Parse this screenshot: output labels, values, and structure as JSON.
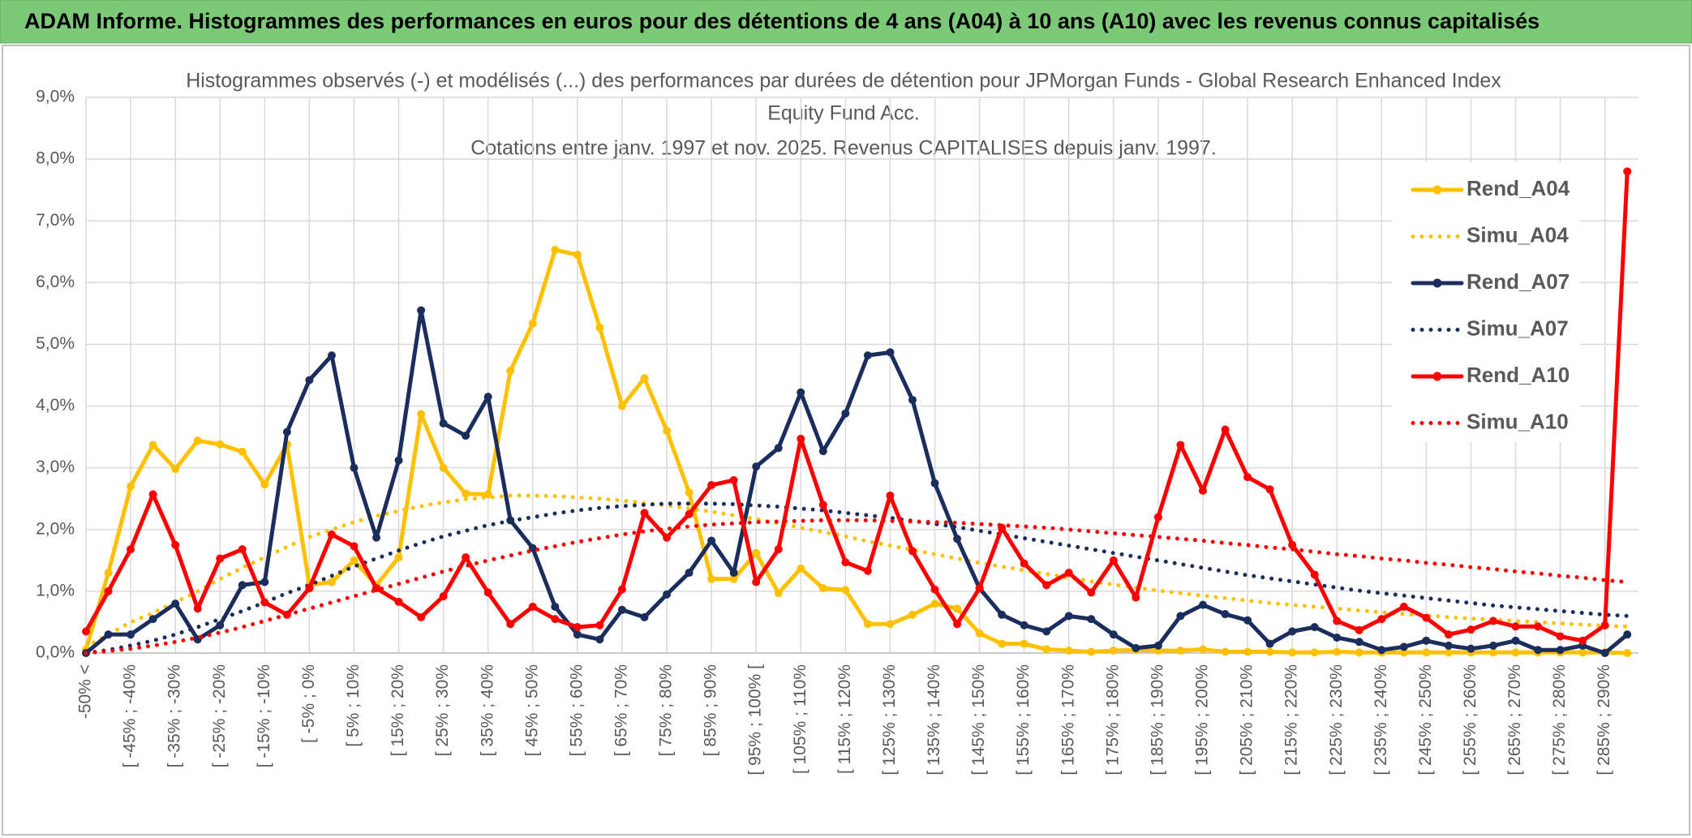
{
  "header": {
    "title": "ADAM Informe. Histogrammes des performances en euros pour des détentions de 4 ans (A04) à 10 ans (A10) avec les revenus connus capitalisés"
  },
  "chart_data": {
    "type": "line",
    "title": [
      "Histogrammes observés (-) et modélisés (...) des performances par durées de détention pour JPMorgan Funds - Global Research Enhanced Index",
      "Equity Fund Acc."
    ],
    "subtitle": "Cotations entre janv. 1997 et nov. 2025. Revenus CAPITALISES depuis janv. 1997.",
    "categories": [
      "-50% <",
      null,
      "[ -45% ; -40%",
      null,
      "[ -35% ; -30%",
      null,
      "[ -25% ; -20%",
      null,
      "[ -15% ; -10%",
      null,
      "[ -5% ; 0%",
      null,
      "[ 5% ; 10%",
      null,
      "[ 15% ; 20%",
      null,
      "[ 25% ; 30%",
      null,
      "[ 35% ; 40%",
      null,
      "[ 45% ; 50%",
      null,
      "[ 55% ; 60%",
      null,
      "[ 65% ; 70%",
      null,
      "[ 75% ; 80%",
      null,
      "[ 85% ; 90%",
      null,
      "[ 95% ; 100% [",
      null,
      "[ 105% ; 110%",
      null,
      "[ 115% ; 120%",
      null,
      "[ 125% ; 130%",
      null,
      "[ 135% ; 140%",
      null,
      "[ 145% ; 150%",
      null,
      "[ 155% ; 160%",
      null,
      "[ 165% ; 170%",
      null,
      "[ 175% ; 180%",
      null,
      "[ 185% ; 190%",
      null,
      "[ 195% ; 200%",
      null,
      "[ 205% ; 210%",
      null,
      "[ 215% ; 220%",
      null,
      "[ 225% ; 230%",
      null,
      "[ 235% ; 240%",
      null,
      "[ 245% ; 250%",
      null,
      "[ 255% ; 260%",
      null,
      "[ 265% ; 270%",
      null,
      "[ 275% ; 280%",
      null,
      "[ 285% ; 290%",
      null
    ],
    "series": [
      {
        "name": "Rend_A04",
        "color": "#ffc000",
        "style": "solid",
        "marker": true,
        "values": [
          0.05,
          1.3,
          2.7,
          3.37,
          2.98,
          3.44,
          3.38,
          3.26,
          2.73,
          3.38,
          1.1,
          1.15,
          1.5,
          1.1,
          1.55,
          3.87,
          3.0,
          2.58,
          2.57,
          4.57,
          5.34,
          6.53,
          6.45,
          5.27,
          4.0,
          4.45,
          3.6,
          2.6,
          1.2,
          1.2,
          1.62,
          0.97,
          1.37,
          1.05,
          1.02,
          0.47,
          0.47,
          0.62,
          0.8,
          0.72,
          0.32,
          0.15,
          0.15,
          0.06,
          0.04,
          0.02,
          0.04,
          0.05,
          0.04,
          0.04,
          0.06,
          0.02,
          0.02,
          0.02,
          0.01,
          0.01,
          0.02,
          0.01,
          0.01,
          0.01,
          0.01,
          0.01,
          0.01,
          0.01,
          0.01,
          0.01,
          0.01,
          0.01,
          0.01,
          0
        ]
      },
      {
        "name": "Simu_A04",
        "color": "#ffc000",
        "style": "dotted",
        "marker": false,
        "values": [
          0.1,
          0.3,
          0.5,
          0.65,
          0.82,
          1.0,
          1.2,
          1.38,
          1.55,
          1.72,
          1.88,
          2.0,
          2.12,
          2.22,
          2.3,
          2.38,
          2.44,
          2.49,
          2.52,
          2.55,
          2.55,
          2.54,
          2.52,
          2.5,
          2.47,
          2.43,
          2.39,
          2.34,
          2.29,
          2.23,
          2.17,
          2.1,
          2.03,
          1.96,
          1.89,
          1.81,
          1.74,
          1.67,
          1.6,
          1.53,
          1.46,
          1.4,
          1.34,
          1.28,
          1.22,
          1.16,
          1.11,
          1.06,
          1.01,
          0.97,
          0.93,
          0.89,
          0.85,
          0.81,
          0.78,
          0.75,
          0.72,
          0.69,
          0.66,
          0.63,
          0.61,
          0.58,
          0.56,
          0.54,
          0.52,
          0.5,
          0.48,
          0.46,
          0.44,
          0.43
        ]
      },
      {
        "name": "Rend_A07",
        "color": "#1b2d5c",
        "style": "solid",
        "marker": true,
        "values": [
          0,
          0.3,
          0.3,
          0.55,
          0.8,
          0.22,
          0.45,
          1.1,
          1.15,
          3.58,
          4.42,
          4.82,
          3.0,
          1.87,
          3.12,
          5.55,
          3.72,
          3.52,
          4.15,
          2.15,
          1.7,
          0.75,
          0.3,
          0.22,
          0.7,
          0.58,
          0.95,
          1.3,
          1.82,
          1.3,
          3.02,
          3.32,
          4.22,
          3.27,
          3.88,
          4.82,
          4.87,
          4.1,
          2.75,
          1.85,
          1.05,
          0.62,
          0.45,
          0.35,
          0.6,
          0.55,
          0.3,
          0.08,
          0.12,
          0.6,
          0.78,
          0.63,
          0.53,
          0.15,
          0.35,
          0.42,
          0.25,
          0.18,
          0.05,
          0.1,
          0.2,
          0.12,
          0.07,
          0.12,
          0.2,
          0.05,
          0.05,
          0.12,
          0,
          0.3
        ]
      },
      {
        "name": "Simu_A07",
        "color": "#1b2d5c",
        "style": "dotted",
        "marker": false,
        "values": [
          0,
          0.05,
          0.12,
          0.2,
          0.3,
          0.42,
          0.55,
          0.68,
          0.82,
          0.97,
          1.1,
          1.25,
          1.4,
          1.53,
          1.66,
          1.78,
          1.89,
          1.98,
          2.07,
          2.14,
          2.2,
          2.26,
          2.31,
          2.35,
          2.38,
          2.4,
          2.42,
          2.42,
          2.42,
          2.41,
          2.39,
          2.37,
          2.34,
          2.31,
          2.27,
          2.23,
          2.19,
          2.14,
          2.09,
          2.04,
          1.98,
          1.92,
          1.86,
          1.8,
          1.74,
          1.68,
          1.62,
          1.56,
          1.5,
          1.44,
          1.38,
          1.32,
          1.26,
          1.21,
          1.16,
          1.11,
          1.06,
          1.01,
          0.97,
          0.93,
          0.89,
          0.85,
          0.81,
          0.77,
          0.74,
          0.71,
          0.68,
          0.65,
          0.62,
          0.6
        ]
      },
      {
        "name": "Rend_A10",
        "color": "#ff0000",
        "style": "solid",
        "marker": true,
        "values": [
          0.35,
          1.0,
          1.68,
          2.57,
          1.75,
          0.72,
          1.53,
          1.68,
          0.82,
          0.62,
          1.05,
          1.92,
          1.73,
          1.05,
          0.83,
          0.58,
          0.92,
          1.55,
          0.98,
          0.47,
          0.75,
          0.55,
          0.42,
          0.45,
          1.03,
          2.27,
          1.87,
          2.25,
          2.72,
          2.8,
          1.15,
          1.68,
          3.47,
          2.4,
          1.47,
          1.33,
          2.55,
          1.65,
          1.03,
          0.47,
          1.05,
          2.03,
          1.45,
          1.1,
          1.3,
          0.98,
          1.5,
          0.9,
          2.2,
          3.37,
          2.63,
          3.62,
          2.85,
          2.65,
          1.75,
          1.27,
          0.52,
          0.37,
          0.55,
          0.75,
          0.57,
          0.3,
          0.38,
          0.52,
          0.43,
          0.43,
          0.27,
          0.2,
          0.45,
          7.8
        ]
      },
      {
        "name": "Simu_A10",
        "color": "#ff0000",
        "style": "dotted",
        "marker": false,
        "values": [
          0,
          0.03,
          0.07,
          0.12,
          0.18,
          0.25,
          0.33,
          0.42,
          0.52,
          0.62,
          0.72,
          0.82,
          0.92,
          1.02,
          1.12,
          1.22,
          1.32,
          1.41,
          1.5,
          1.58,
          1.66,
          1.73,
          1.8,
          1.86,
          1.92,
          1.97,
          2.01,
          2.05,
          2.08,
          2.1,
          2.12,
          2.13,
          2.14,
          2.15,
          2.15,
          2.15,
          2.14,
          2.13,
          2.12,
          2.11,
          2.09,
          2.07,
          2.05,
          2.03,
          2.0,
          1.97,
          1.94,
          1.91,
          1.88,
          1.85,
          1.82,
          1.78,
          1.75,
          1.71,
          1.68,
          1.64,
          1.6,
          1.57,
          1.53,
          1.5,
          1.46,
          1.43,
          1.39,
          1.36,
          1.32,
          1.29,
          1.25,
          1.22,
          1.18,
          1.15
        ]
      }
    ],
    "ylim": [
      0,
      9
    ],
    "yticks": [
      {
        "value": 0,
        "label": "0,0%"
      },
      {
        "value": 1,
        "label": "1,0%"
      },
      {
        "value": 2,
        "label": "2,0%"
      },
      {
        "value": 3,
        "label": "3,0%"
      },
      {
        "value": 4,
        "label": "4,0%"
      },
      {
        "value": 5,
        "label": "5,0%"
      },
      {
        "value": 6,
        "label": "6,0%"
      },
      {
        "value": 7,
        "label": "7,0%"
      },
      {
        "value": 8,
        "label": "8,0%"
      },
      {
        "value": 9,
        "label": "9,0%"
      }
    ],
    "grid": true,
    "legend": "right"
  }
}
